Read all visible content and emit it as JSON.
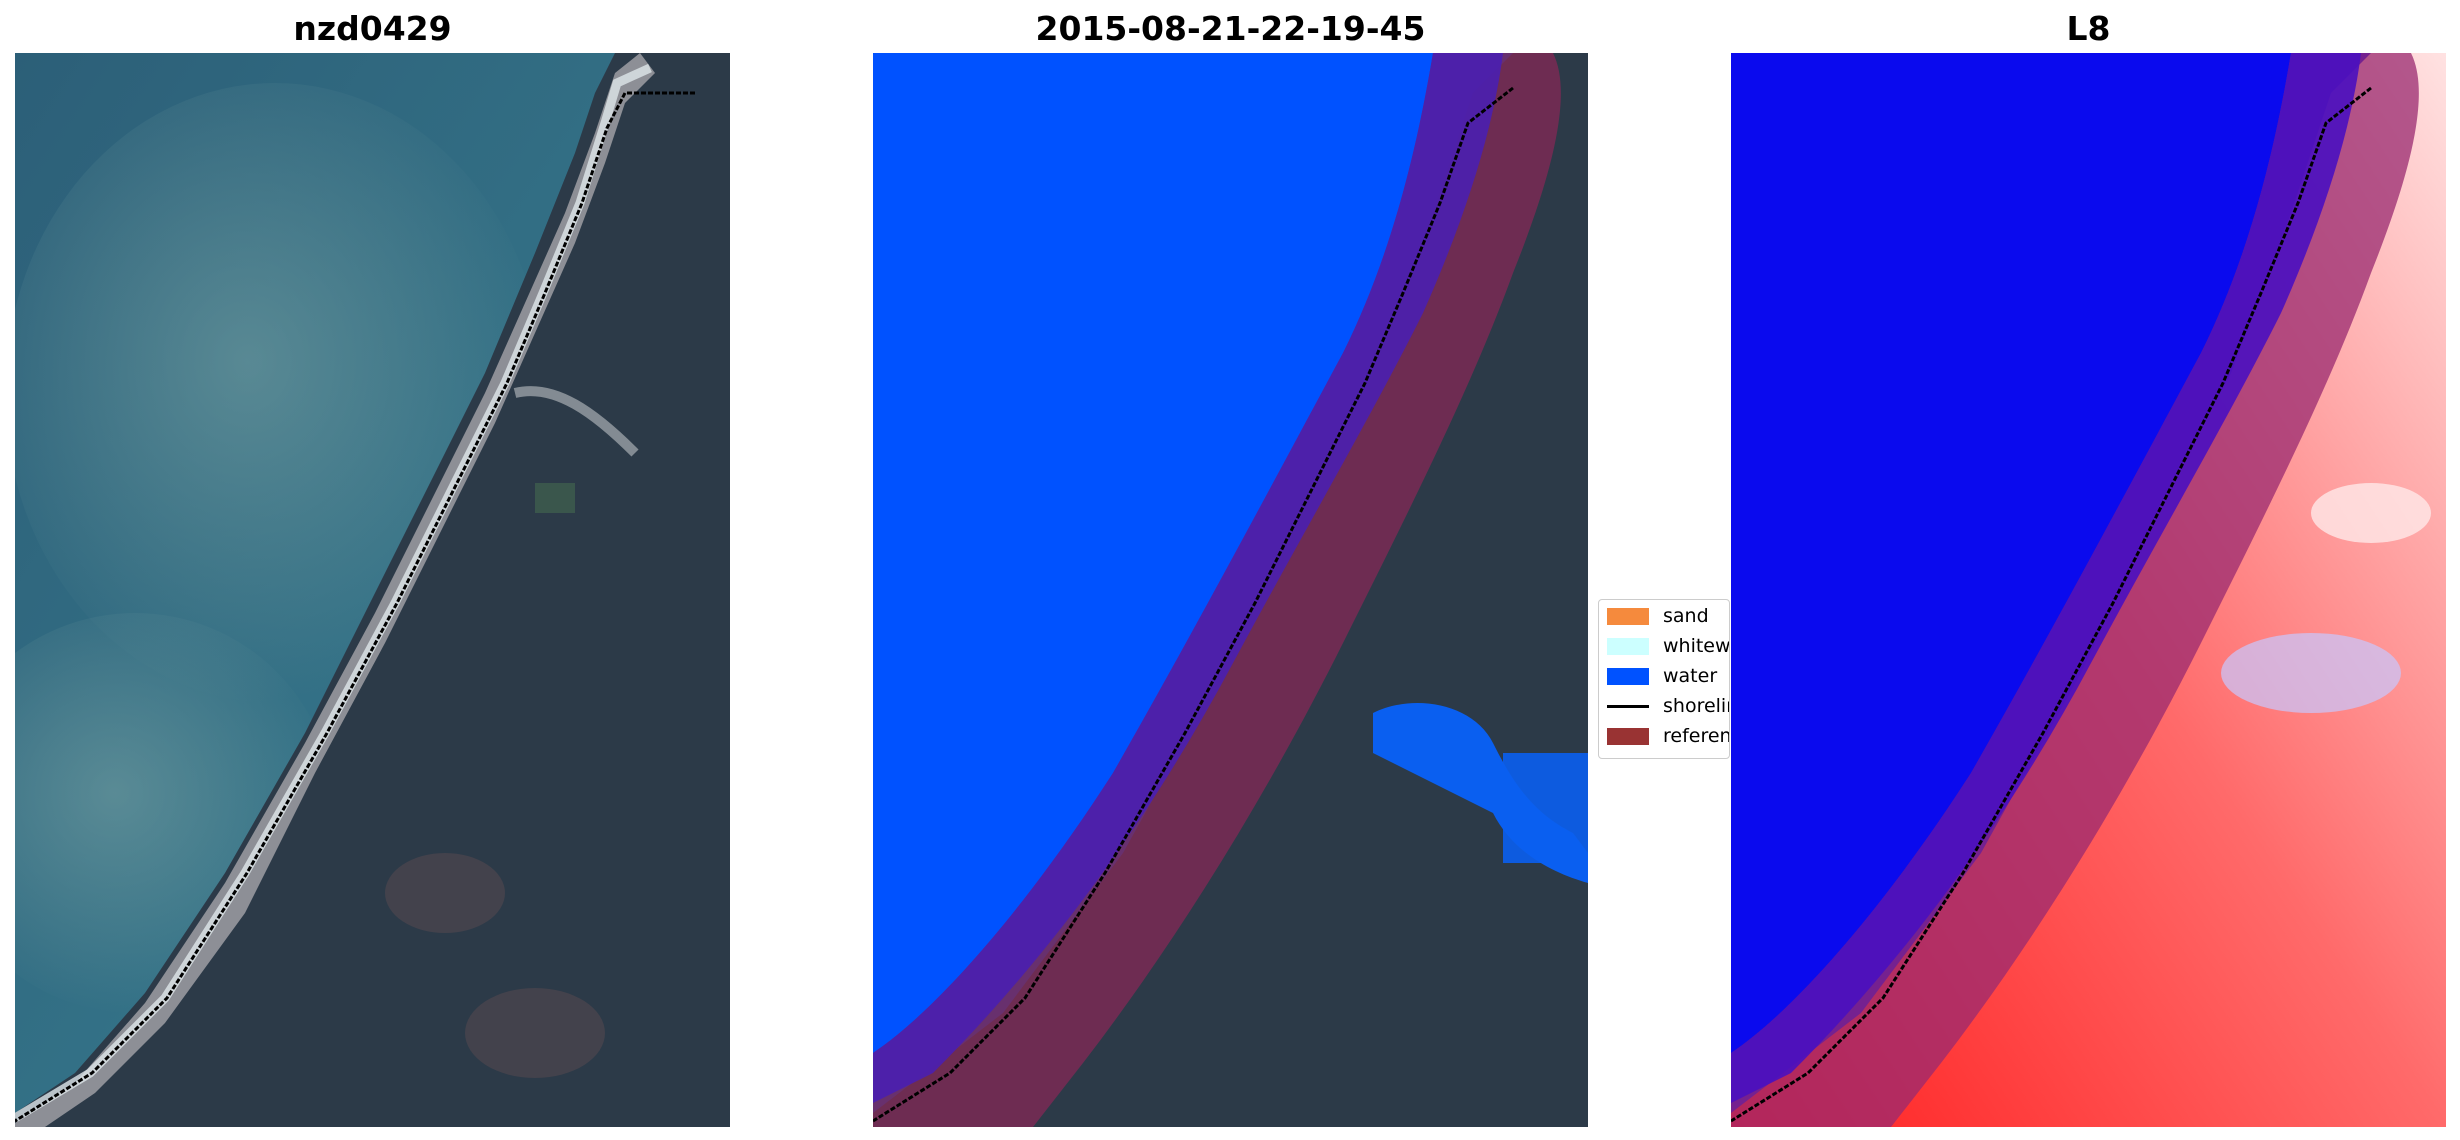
{
  "panels": [
    {
      "title": "nzd0429"
    },
    {
      "title": "2015-08-21-22-19-45"
    },
    {
      "title": "L8"
    }
  ],
  "legend": {
    "items": [
      {
        "label": "sand",
        "color": "#f58a3d",
        "kind": "patch"
      },
      {
        "label": "whitewater",
        "color": "#ccffff",
        "kind": "patch"
      },
      {
        "label": "water",
        "color": "#0052ff",
        "kind": "patch"
      },
      {
        "label": "shoreline",
        "color": "#000000",
        "kind": "line"
      },
      {
        "label": "reference shoreline buffer",
        "color": "#993333",
        "kind": "patch"
      }
    ]
  },
  "colors": {
    "ocean": "#2f6e86",
    "land": "#2c3a48",
    "beach": "#8d8f96",
    "water_class": "#0052ff",
    "buffer": "#7a2a55",
    "buffer_over_water": "#4a1fb0",
    "l8_water": "#0a0aee",
    "l8_land": "#ff4040"
  }
}
